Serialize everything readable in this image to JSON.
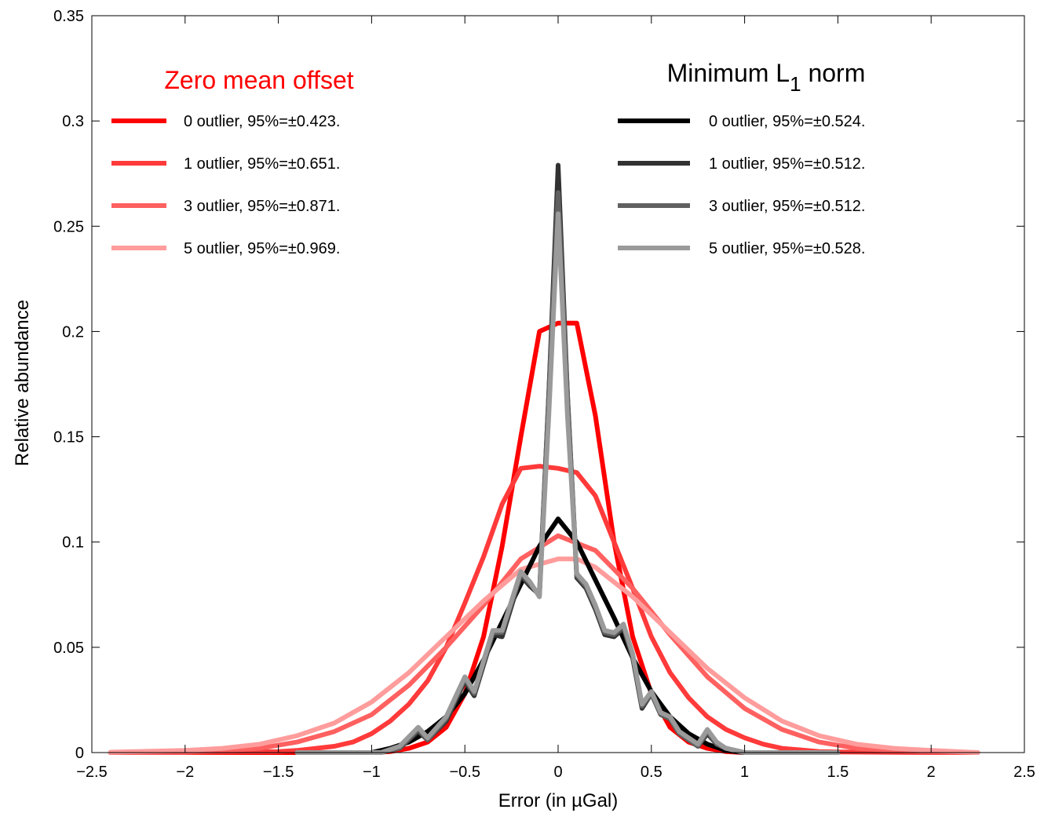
{
  "chart_data": {
    "type": "line",
    "xlabel_prefix": "Error (in ",
    "xlabel_unit": "µGal)",
    "ylabel": "Relative abundance",
    "xlim": [
      -2.5,
      2.5
    ],
    "ylim": [
      0,
      0.35
    ],
    "xticks": [
      -2.5,
      -2,
      -1.5,
      -1,
      -0.5,
      0,
      0.5,
      1,
      1.5,
      2,
      2.5
    ],
    "xtick_labels": [
      "−2.5",
      "−2",
      "−1.5",
      "−1",
      "−0.5",
      "0",
      "0.5",
      "1",
      "1.5",
      "2",
      "2.5"
    ],
    "yticks": [
      0,
      0.05,
      0.1,
      0.15,
      0.2,
      0.25,
      0.3,
      0.35
    ],
    "ytick_labels": [
      "0",
      "0.05",
      "0.1",
      "0.15",
      "0.2",
      "0.25",
      "0.3",
      "0.35"
    ],
    "grid": false,
    "legend_left": {
      "title": "Zero mean offset",
      "title_color": "#ff0000",
      "placement": "top-left"
    },
    "legend_right": {
      "title_main": "Minimum L",
      "title_sub": "1",
      "title_end": " norm",
      "title_color": "#000000",
      "placement": "top-right"
    },
    "series": [
      {
        "name": "0 outlier, 95%=±0.423.",
        "color": "#ff0000",
        "group": "left",
        "x": [
          -2.4,
          -1.5,
          -1.2,
          -1.0,
          -0.9,
          -0.8,
          -0.7,
          -0.6,
          -0.5,
          -0.4,
          -0.3,
          -0.2,
          -0.1,
          0.0,
          0.1,
          0.2,
          0.3,
          0.4,
          0.5,
          0.6,
          0.7,
          0.8,
          0.9,
          1.0,
          1.5
        ],
        "y": [
          0,
          0,
          0,
          0,
          0.0005,
          0.002,
          0.005,
          0.012,
          0.028,
          0.055,
          0.098,
          0.15,
          0.2,
          0.204,
          0.204,
          0.16,
          0.1,
          0.055,
          0.028,
          0.012,
          0.005,
          0.002,
          0.0005,
          0,
          0
        ]
      },
      {
        "name": "1 outlier, 95%=±0.651.",
        "color": "#ff3a3a",
        "group": "left",
        "x": [
          -2.4,
          -2.0,
          -1.5,
          -1.4,
          -1.2,
          -1.1,
          -1.0,
          -0.9,
          -0.8,
          -0.7,
          -0.6,
          -0.5,
          -0.4,
          -0.3,
          -0.2,
          -0.1,
          0.0,
          0.1,
          0.2,
          0.3,
          0.4,
          0.5,
          0.6,
          0.7,
          0.8,
          0.9,
          1.0,
          1.1,
          1.2,
          1.4,
          1.5,
          2.0,
          2.25
        ],
        "y": [
          0,
          0,
          0.0005,
          0.001,
          0.003,
          0.005,
          0.009,
          0.015,
          0.023,
          0.034,
          0.05,
          0.071,
          0.093,
          0.118,
          0.135,
          0.136,
          0.135,
          0.133,
          0.122,
          0.1,
          0.078,
          0.055,
          0.038,
          0.026,
          0.017,
          0.011,
          0.007,
          0.004,
          0.002,
          0.0005,
          0.0003,
          0,
          0
        ]
      },
      {
        "name": "3 outlier, 95%=±0.871.",
        "color": "#ff6060",
        "group": "left",
        "x": [
          -2.4,
          -2.0,
          -1.8,
          -1.6,
          -1.4,
          -1.2,
          -1.0,
          -0.8,
          -0.6,
          -0.4,
          -0.2,
          0.0,
          0.2,
          0.4,
          0.6,
          0.8,
          1.0,
          1.2,
          1.4,
          1.6,
          1.8,
          2.0,
          2.25
        ],
        "y": [
          0,
          0.0002,
          0.001,
          0.002,
          0.005,
          0.01,
          0.018,
          0.032,
          0.05,
          0.07,
          0.092,
          0.103,
          0.096,
          0.078,
          0.056,
          0.036,
          0.021,
          0.011,
          0.005,
          0.002,
          0.001,
          0.0003,
          0
        ]
      },
      {
        "name": "5 outlier, 95%=±0.969.",
        "color": "#ff9c9c",
        "group": "left",
        "x": [
          -2.4,
          -2.0,
          -1.8,
          -1.6,
          -1.4,
          -1.2,
          -1.0,
          -0.8,
          -0.6,
          -0.4,
          -0.2,
          0.0,
          0.1,
          0.2,
          0.4,
          0.6,
          0.8,
          1.0,
          1.2,
          1.4,
          1.6,
          1.8,
          2.0,
          2.25
        ],
        "y": [
          0.0002,
          0.001,
          0.002,
          0.004,
          0.008,
          0.014,
          0.024,
          0.038,
          0.055,
          0.072,
          0.087,
          0.092,
          0.092,
          0.088,
          0.074,
          0.057,
          0.04,
          0.026,
          0.015,
          0.008,
          0.004,
          0.002,
          0.001,
          0
        ]
      },
      {
        "name": "0 outlier, 95%=±0.524.",
        "color": "#000000",
        "group": "right",
        "x": [
          -1.4,
          -1.0,
          -0.9,
          -0.8,
          -0.7,
          -0.6,
          -0.5,
          -0.4,
          -0.3,
          -0.2,
          -0.1,
          0.0,
          0.1,
          0.2,
          0.3,
          0.4,
          0.5,
          0.6,
          0.7,
          0.8,
          0.9,
          1.0,
          1.5
        ],
        "y": [
          0,
          0,
          0.002,
          0.005,
          0.01,
          0.017,
          0.028,
          0.044,
          0.062,
          0.08,
          0.098,
          0.111,
          0.1,
          0.082,
          0.064,
          0.045,
          0.029,
          0.017,
          0.009,
          0.004,
          0.001,
          0,
          0
        ]
      },
      {
        "name": "1 outlier, 95%=±0.512.",
        "color": "#323232",
        "group": "right",
        "x": [
          -1.4,
          -0.95,
          -0.85,
          -0.75,
          -0.7,
          -0.6,
          -0.5,
          -0.45,
          -0.35,
          -0.3,
          -0.2,
          -0.15,
          -0.1,
          -0.05,
          0.0,
          0.05,
          0.1,
          0.15,
          0.2,
          0.25,
          0.3,
          0.35,
          0.4,
          0.45,
          0.5,
          0.55,
          0.6,
          0.65,
          0.7,
          0.75,
          0.8,
          0.85,
          0.9,
          1.0,
          1.5
        ],
        "y": [
          0,
          0,
          0.002,
          0.01,
          0.006,
          0.015,
          0.034,
          0.027,
          0.056,
          0.055,
          0.084,
          0.079,
          0.075,
          0.17,
          0.279,
          0.17,
          0.083,
          0.078,
          0.068,
          0.056,
          0.055,
          0.059,
          0.045,
          0.021,
          0.028,
          0.018,
          0.016,
          0.009,
          0.006,
          0.003,
          0.009,
          0.004,
          0.002,
          0,
          0
        ]
      },
      {
        "name": "3 outlier, 95%=±0.512.",
        "color": "#606060",
        "group": "right",
        "x": [
          -1.4,
          -0.95,
          -0.85,
          -0.75,
          -0.7,
          -0.6,
          -0.5,
          -0.45,
          -0.35,
          -0.3,
          -0.2,
          -0.15,
          -0.1,
          -0.05,
          0.0,
          0.05,
          0.1,
          0.15,
          0.2,
          0.25,
          0.3,
          0.35,
          0.4,
          0.45,
          0.5,
          0.55,
          0.6,
          0.65,
          0.7,
          0.75,
          0.8,
          0.85,
          0.9,
          1.0,
          1.5
        ],
        "y": [
          0,
          0,
          0.002,
          0.011,
          0.006,
          0.016,
          0.035,
          0.028,
          0.057,
          0.057,
          0.085,
          0.08,
          0.075,
          0.17,
          0.266,
          0.17,
          0.084,
          0.079,
          0.069,
          0.057,
          0.056,
          0.06,
          0.046,
          0.022,
          0.028,
          0.018,
          0.016,
          0.009,
          0.006,
          0.003,
          0.01,
          0.004,
          0.002,
          0,
          0
        ]
      },
      {
        "name": "5 outlier, 95%=±0.528.",
        "color": "#9a9a9a",
        "group": "right",
        "x": [
          -1.4,
          -0.95,
          -0.85,
          -0.75,
          -0.7,
          -0.6,
          -0.5,
          -0.45,
          -0.35,
          -0.3,
          -0.2,
          -0.15,
          -0.1,
          -0.05,
          0.0,
          0.05,
          0.1,
          0.15,
          0.2,
          0.25,
          0.3,
          0.35,
          0.4,
          0.45,
          0.5,
          0.55,
          0.6,
          0.65,
          0.7,
          0.75,
          0.8,
          0.85,
          0.9,
          1.0,
          1.5
        ],
        "y": [
          0,
          0,
          0.003,
          0.012,
          0.007,
          0.017,
          0.036,
          0.029,
          0.058,
          0.058,
          0.086,
          0.081,
          0.074,
          0.16,
          0.256,
          0.16,
          0.085,
          0.08,
          0.07,
          0.058,
          0.057,
          0.061,
          0.047,
          0.023,
          0.029,
          0.019,
          0.017,
          0.01,
          0.007,
          0.004,
          0.011,
          0.005,
          0.002,
          0,
          0
        ]
      }
    ]
  }
}
